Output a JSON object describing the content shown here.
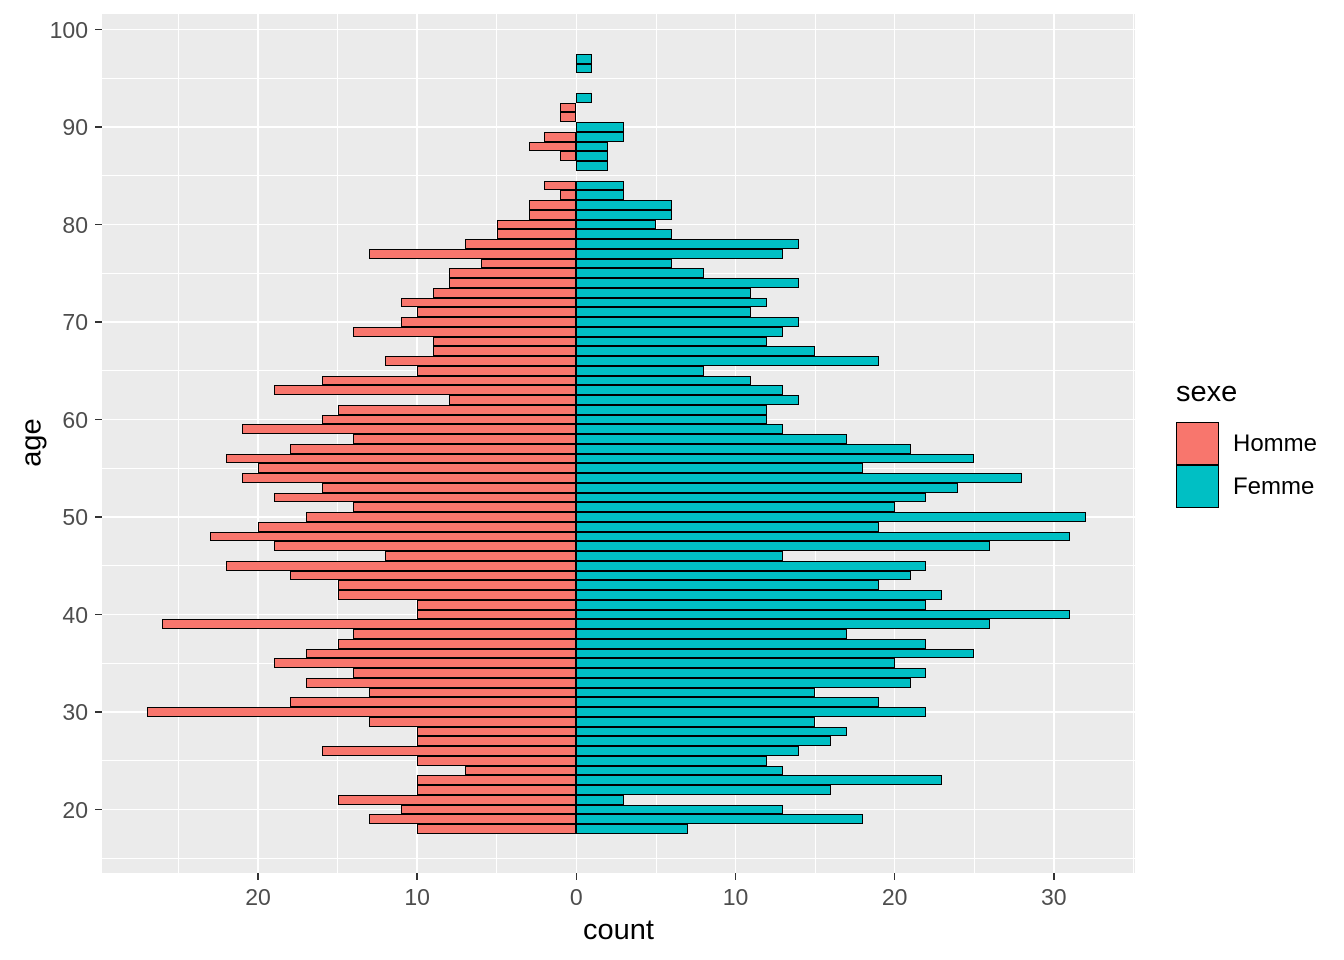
{
  "style": {
    "page_bg": "#FFFFFF",
    "panel_bg": "#EBEBEB",
    "grid_color": "#FFFFFF",
    "bar_stroke": "#000000",
    "tick_text_color": "#4D4D4D",
    "tick_mark_color": "#333333",
    "title_text_color": "#000000"
  },
  "chart_data": {
    "type": "bar",
    "variant": "population-pyramid-histogram",
    "title": "",
    "xlabel": "count",
    "ylabel": "age",
    "legend": {
      "title": "sexe",
      "position": "right",
      "entries": [
        {
          "label": "Homme",
          "color": "#F8766D"
        },
        {
          "label": "Femme",
          "color": "#00BFC4"
        }
      ]
    },
    "x_axis": {
      "tick_values": [
        -20,
        -10,
        0,
        10,
        20,
        30
      ],
      "tick_labels": [
        "20",
        "10",
        "0",
        "10",
        "20",
        "30"
      ],
      "minor_ticks": [
        -25,
        -15,
        -5,
        5,
        15,
        25,
        35
      ],
      "range": [
        -29.8,
        35.1
      ]
    },
    "y_axis": {
      "tick_values": [
        20,
        30,
        40,
        50,
        60,
        70,
        80,
        90,
        100
      ],
      "tick_labels": [
        "20",
        "30",
        "40",
        "50",
        "60",
        "70",
        "80",
        "90",
        "100"
      ],
      "minor_ticks": [
        15,
        25,
        35,
        45,
        55,
        65,
        75,
        85,
        95
      ],
      "range": [
        13.5,
        101.6
      ]
    },
    "bar_width_years": 1,
    "ages": [
      18,
      19,
      20,
      21,
      22,
      23,
      24,
      25,
      26,
      27,
      28,
      29,
      30,
      31,
      32,
      33,
      34,
      35,
      36,
      37,
      38,
      39,
      40,
      41,
      42,
      43,
      44,
      45,
      46,
      47,
      48,
      49,
      50,
      51,
      52,
      53,
      54,
      55,
      56,
      57,
      58,
      59,
      60,
      61,
      62,
      63,
      64,
      65,
      66,
      67,
      68,
      69,
      70,
      71,
      72,
      73,
      74,
      75,
      76,
      77,
      78,
      79,
      80,
      81,
      82,
      83,
      84,
      85,
      86,
      87,
      88,
      89,
      90,
      91,
      92,
      93,
      94,
      95,
      96,
      97
    ],
    "series": [
      {
        "name": "Homme",
        "side": "left",
        "color": "#F8766D",
        "values": [
          10,
          13,
          11,
          15,
          10,
          10,
          7,
          10,
          16,
          10,
          10,
          13,
          27,
          18,
          13,
          17,
          14,
          19,
          17,
          15,
          14,
          26,
          10,
          10,
          15,
          15,
          18,
          22,
          12,
          19,
          23,
          20,
          17,
          14,
          19,
          16,
          21,
          20,
          22,
          18,
          14,
          21,
          16,
          15,
          8,
          19,
          16,
          10,
          12,
          9,
          9,
          14,
          11,
          10,
          11,
          9,
          8,
          8,
          6,
          13,
          7,
          5,
          5,
          3,
          3,
          1,
          2,
          0,
          0,
          1,
          3,
          2,
          0,
          1,
          1,
          0,
          0,
          0,
          0,
          0
        ]
      },
      {
        "name": "Femme",
        "side": "right",
        "color": "#00BFC4",
        "values": [
          7,
          18,
          13,
          3,
          16,
          23,
          13,
          12,
          14,
          16,
          17,
          15,
          22,
          19,
          15,
          21,
          22,
          20,
          25,
          22,
          17,
          26,
          31,
          22,
          23,
          19,
          21,
          22,
          13,
          26,
          31,
          19,
          32,
          20,
          22,
          24,
          28,
          18,
          25,
          21,
          17,
          13,
          12,
          12,
          14,
          13,
          11,
          8,
          19,
          15,
          12,
          13,
          14,
          11,
          12,
          11,
          14,
          8,
          6,
          13,
          14,
          6,
          5,
          6,
          6,
          3,
          3,
          0,
          2,
          2,
          2,
          3,
          3,
          0,
          0,
          1,
          0,
          0,
          1,
          1
        ]
      }
    ]
  }
}
